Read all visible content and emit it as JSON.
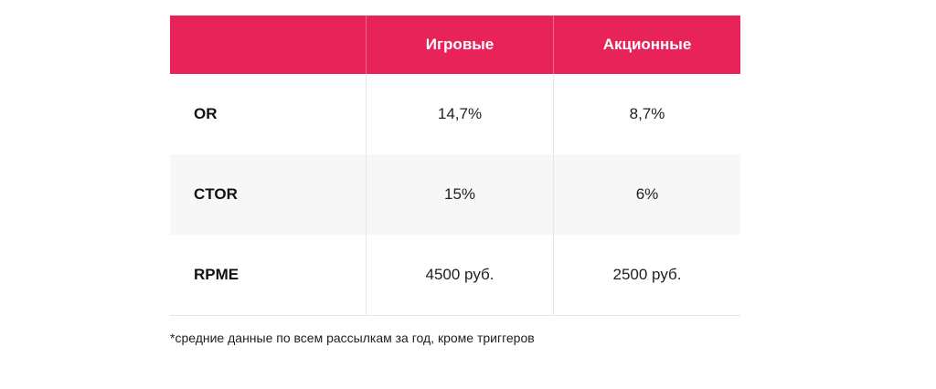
{
  "table": {
    "header": {
      "label": "",
      "col1": "Игровые",
      "col2": "Акционные"
    },
    "rows": [
      {
        "label": "OR",
        "col1": "14,7%",
        "col2": "8,7%"
      },
      {
        "label": "CTOR",
        "col1": "15%",
        "col2": "6%"
      },
      {
        "label": "RPME",
        "col1": "4500 руб.",
        "col2": "2500 руб."
      }
    ]
  },
  "footnote": "*средние данные по всем рассылкам за год, кроме триггеров",
  "colors": {
    "header_bg": "#e8235a",
    "alt_row_bg": "#f7f7f7"
  }
}
